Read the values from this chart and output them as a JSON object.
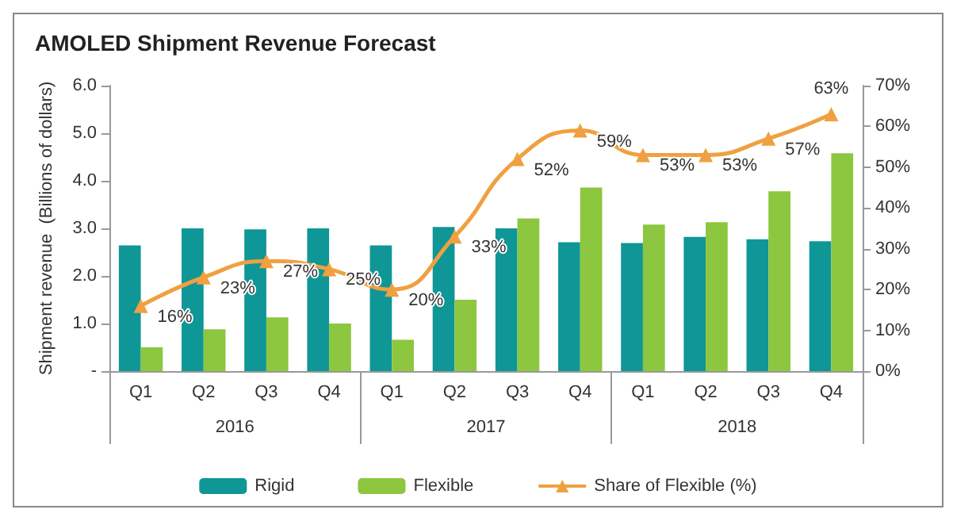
{
  "chart_data": {
    "type": "bar",
    "title": "AMOLED Shipment Revenue Forecast",
    "ylabel": "Shipment revenue  (Billions of dollars)",
    "categories": [
      "Q1",
      "Q2",
      "Q3",
      "Q4",
      "Q1",
      "Q2",
      "Q3",
      "Q4",
      "Q1",
      "Q2",
      "Q3",
      "Q4"
    ],
    "annotations": [
      "2016",
      "2017",
      "2018"
    ],
    "series": [
      {
        "name": "Rigid",
        "color": "#0f9696",
        "values": [
          2.64,
          3.0,
          2.98,
          3.0,
          2.64,
          3.03,
          3.0,
          2.71,
          2.69,
          2.82,
          2.77,
          2.73
        ]
      },
      {
        "name": "Flexible",
        "color": "#8dc63f",
        "values": [
          0.5,
          0.88,
          1.13,
          1.0,
          0.66,
          1.5,
          3.21,
          3.86,
          3.08,
          3.13,
          3.78,
          4.58
        ]
      },
      {
        "name": "Share of Flexible (%)",
        "type": "line",
        "axis": "y2",
        "color": "#f0a040",
        "marker": "triangle",
        "values": [
          16,
          23,
          27,
          25,
          20,
          33,
          52,
          59,
          53,
          53,
          57,
          63
        ],
        "value_labels": [
          "16%",
          "23%",
          "27%",
          "25%",
          "20%",
          "33%",
          "52%",
          "59%",
          "53%",
          "53%",
          "57%",
          "63%"
        ]
      }
    ],
    "ylim": [
      0,
      6
    ],
    "yticks": [
      {
        "value": 0,
        "label": "-"
      },
      {
        "value": 1,
        "label": "1.0"
      },
      {
        "value": 2,
        "label": "2.0"
      },
      {
        "value": 3,
        "label": "3.0"
      },
      {
        "value": 4,
        "label": "4.0"
      },
      {
        "value": 5,
        "label": "5.0"
      },
      {
        "value": 6,
        "label": "6.0"
      }
    ],
    "y2lim": [
      0,
      70
    ],
    "y2ticks": [
      {
        "value": 0,
        "label": "0%"
      },
      {
        "value": 10,
        "label": "10%"
      },
      {
        "value": 20,
        "label": "20%"
      },
      {
        "value": 30,
        "label": "30%"
      },
      {
        "value": 40,
        "label": "40%"
      },
      {
        "value": 50,
        "label": "50%"
      },
      {
        "value": 60,
        "label": "60%"
      },
      {
        "value": 70,
        "label": "70%"
      }
    ],
    "legend": "bottom",
    "grid": false
  }
}
